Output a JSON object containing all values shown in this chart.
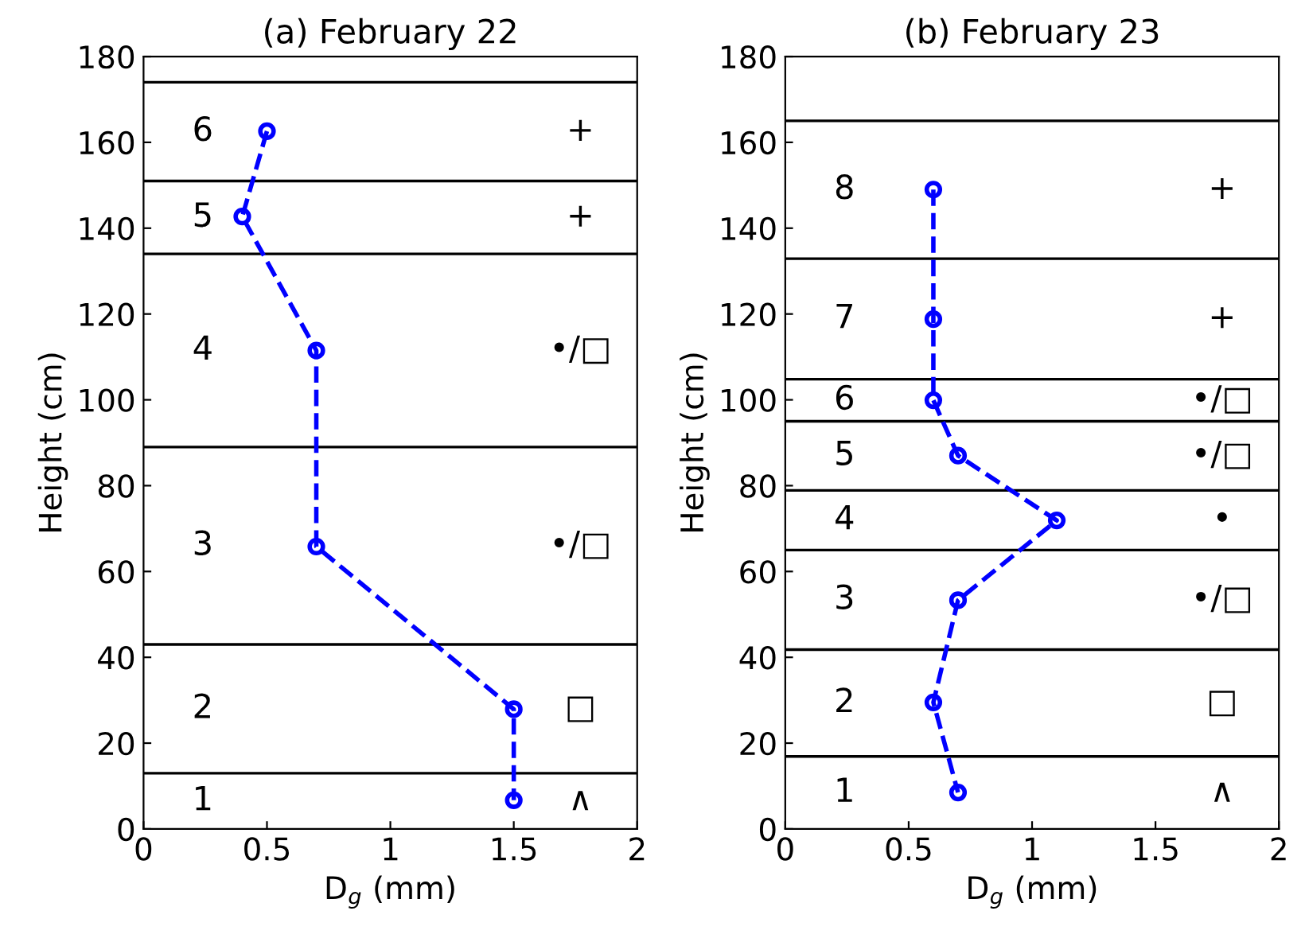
{
  "chart_data": [
    {
      "type": "line",
      "title": "(a) February 22",
      "xlabel": "D$_{g}$ (mm)",
      "ylabel": "Height (cm)",
      "x": [
        0.5,
        0.4,
        0.7,
        0.7,
        1.5,
        1.5
      ],
      "series": [
        {
          "color": "#0000ff",
          "values": [
            162.6,
            142.7,
            111.5,
            65.8,
            27.9,
            6.7
          ]
        }
      ],
      "marker": "circle",
      "line_style": "dashed",
      "grid": false,
      "xlim": [
        0,
        2
      ],
      "xticks": [
        0,
        0.5,
        1,
        1.5,
        2
      ],
      "ylim": [
        0,
        180
      ],
      "yticks": [
        0,
        20,
        40,
        60,
        80,
        100,
        120,
        140,
        160,
        180
      ],
      "ref_lines": [
        {
          "axis": "y",
          "value": 174,
          "color": "#000000"
        },
        {
          "axis": "y",
          "value": 151,
          "color": "#000000"
        },
        {
          "axis": "y",
          "value": 134,
          "color": "#000000"
        },
        {
          "axis": "y",
          "value": 89,
          "color": "#000000"
        },
        {
          "axis": "y",
          "value": 43,
          "color": "#000000"
        },
        {
          "axis": "y",
          "value": 13,
          "color": "#000000"
        }
      ],
      "annotations": [
        "6",
        "+",
        "5",
        "+",
        "4",
        "•/□",
        "3",
        "•/□",
        "2",
        "□",
        "1",
        "∧"
      ]
    },
    {
      "type": "line",
      "title": "(b) February 23",
      "xlabel": "D$_{g}$ (mm)",
      "ylabel": "Height (cm)",
      "x": [
        0.6,
        0.6,
        0.6,
        0.7,
        1.1,
        0.7,
        0.6,
        0.7
      ],
      "series": [
        {
          "color": "#0000ff",
          "values": [
            149,
            118.8,
            99.9,
            87,
            71.9,
            53.3,
            29.5,
            8.5
          ]
        }
      ],
      "marker": "circle",
      "line_style": "dashed",
      "grid": false,
      "xlim": [
        0,
        2
      ],
      "xticks": [
        0,
        0.5,
        1,
        1.5,
        2
      ],
      "ylim": [
        0,
        180
      ],
      "yticks": [
        0,
        20,
        40,
        60,
        80,
        100,
        120,
        140,
        160,
        180
      ],
      "ref_lines": [
        {
          "axis": "y",
          "value": 165,
          "color": "#000000"
        },
        {
          "axis": "y",
          "value": 132.9,
          "color": "#000000"
        },
        {
          "axis": "y",
          "value": 104.8,
          "color": "#000000"
        },
        {
          "axis": "y",
          "value": 95,
          "color": "#000000"
        },
        {
          "axis": "y",
          "value": 78.9,
          "color": "#000000"
        },
        {
          "axis": "y",
          "value": 65,
          "color": "#000000"
        },
        {
          "axis": "y",
          "value": 41.8,
          "color": "#000000"
        },
        {
          "axis": "y",
          "value": 16.9,
          "color": "#000000"
        }
      ],
      "annotations": [
        "8",
        "+",
        "7",
        "+",
        "6",
        "•/□",
        "5",
        "•/□",
        "4",
        "•",
        "3",
        "•/□",
        "2",
        "□",
        "1",
        "∧"
      ]
    }
  ]
}
